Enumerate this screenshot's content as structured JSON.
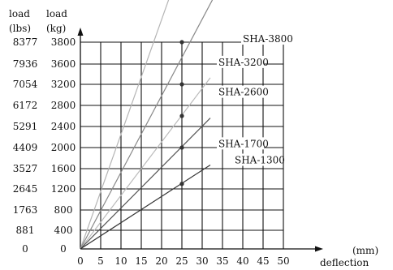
{
  "chart_data": {
    "type": "line",
    "left_axis_header": [
      "load",
      "(lbs)"
    ],
    "right_axis_header": [
      "load",
      "(kg)"
    ],
    "xlabel_unit": "(mm)",
    "xlabel": "deflection",
    "x_ticks": [
      0,
      5,
      10,
      15,
      20,
      25,
      30,
      35,
      40,
      45,
      50
    ],
    "xlim": [
      0,
      50
    ],
    "y_ticks_kg": [
      0,
      400,
      800,
      1200,
      1600,
      2000,
      2400,
      2800,
      3200,
      3600,
      3800
    ],
    "y_ticks_lbs": [
      "0",
      "881",
      "1763",
      "2645",
      "3527",
      "4409",
      "5291",
      "6172",
      "7054",
      "7936",
      "8377"
    ],
    "ylim": [
      0,
      3800
    ],
    "grid": true,
    "series": [
      {
        "name": "SHA-3800",
        "x": [
          0,
          40
        ],
        "y": [
          0,
          6100
        ],
        "marker_x": 25,
        "marker_y": 3800,
        "color": "#b5b5b5",
        "label_x": 40,
        "label_y": 3800
      },
      {
        "name": "SHA-3200",
        "x": [
          0,
          33
        ],
        "y": [
          0,
          4220
        ],
        "marker_x": 25,
        "marker_y": 3200,
        "color": "#888888",
        "label_x": 34,
        "label_y": 3570
      },
      {
        "name": "SHA-2600",
        "x": [
          0,
          32
        ],
        "y": [
          0,
          3330
        ],
        "marker_x": 25,
        "marker_y": 2600,
        "color": "#bbbbbb",
        "label_x": 34,
        "label_y": 2990
      },
      {
        "name": "SHA-1700",
        "x": [
          0,
          32
        ],
        "y": [
          0,
          2560
        ],
        "marker_x": 25,
        "marker_y": 2000,
        "color": "#555555",
        "label_x": 34,
        "label_y": 2010
      },
      {
        "name": "SHA-1300",
        "x": [
          0,
          32
        ],
        "y": [
          0,
          1670
        ],
        "marker_x": 25,
        "marker_y": 1300,
        "color": "#333333",
        "label_x": 38,
        "label_y": 1700
      }
    ]
  }
}
